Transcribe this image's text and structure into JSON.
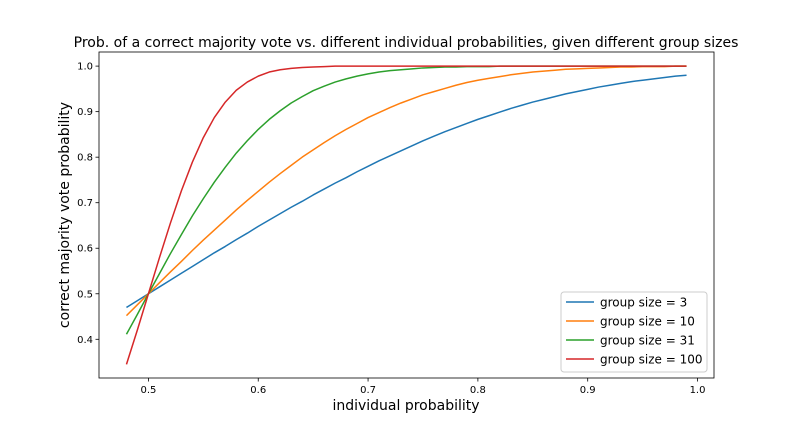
{
  "chart_data": {
    "type": "line",
    "title": "Prob. of a correct majority vote vs. different individual probabilities, given different group sizes",
    "xlabel": "individual probability",
    "ylabel": "correct majority vote probability",
    "xlim": [
      0.455,
      1.015
    ],
    "ylim": [
      0.315,
      1.031
    ],
    "xticks": [
      0.5,
      0.6,
      0.7,
      0.8,
      0.9,
      1.0
    ],
    "xtick_labels": [
      "0.5",
      "0.6",
      "0.7",
      "0.8",
      "0.9",
      "1.0"
    ],
    "yticks": [
      0.4,
      0.5,
      0.6,
      0.7,
      0.8,
      0.9,
      1.0
    ],
    "ytick_labels": [
      "0.4",
      "0.5",
      "0.6",
      "0.7",
      "0.8",
      "0.9",
      "1.0"
    ],
    "grid": false,
    "legend_position": "lower-right",
    "x": [
      0.48,
      0.49,
      0.5,
      0.51,
      0.52,
      0.53,
      0.54,
      0.55,
      0.56,
      0.57,
      0.58,
      0.59,
      0.6,
      0.61,
      0.62,
      0.63,
      0.64,
      0.65,
      0.66,
      0.67,
      0.68,
      0.69,
      0.7,
      0.71,
      0.72,
      0.73,
      0.74,
      0.75,
      0.76,
      0.77,
      0.78,
      0.79,
      0.8,
      0.81,
      0.82,
      0.83,
      0.84,
      0.85,
      0.86,
      0.87,
      0.88,
      0.89,
      0.9,
      0.91,
      0.92,
      0.93,
      0.94,
      0.95,
      0.96,
      0.97,
      0.98,
      0.99
    ],
    "series": [
      {
        "name": "group size = 3",
        "color": "#1f77b4",
        "values": [
          0.47,
          0.485,
          0.5,
          0.515,
          0.53,
          0.545,
          0.56,
          0.575,
          0.59,
          0.604,
          0.619,
          0.633,
          0.648,
          0.662,
          0.676,
          0.69,
          0.703,
          0.717,
          0.73,
          0.743,
          0.755,
          0.768,
          0.78,
          0.792,
          0.803,
          0.814,
          0.825,
          0.836,
          0.846,
          0.856,
          0.865,
          0.874,
          0.883,
          0.891,
          0.899,
          0.907,
          0.914,
          0.921,
          0.927,
          0.933,
          0.939,
          0.944,
          0.949,
          0.954,
          0.958,
          0.962,
          0.966,
          0.969,
          0.972,
          0.975,
          0.978,
          0.98
        ]
      },
      {
        "name": "group size = 10",
        "color": "#ff7f0e",
        "values": [
          0.452,
          0.476,
          0.5,
          0.524,
          0.548,
          0.571,
          0.595,
          0.618,
          0.64,
          0.662,
          0.684,
          0.705,
          0.725,
          0.745,
          0.764,
          0.782,
          0.8,
          0.816,
          0.832,
          0.847,
          0.861,
          0.874,
          0.887,
          0.898,
          0.909,
          0.919,
          0.928,
          0.937,
          0.944,
          0.951,
          0.958,
          0.964,
          0.969,
          0.973,
          0.977,
          0.981,
          0.984,
          0.987,
          0.989,
          0.991,
          0.993,
          0.994,
          0.995,
          0.996,
          0.997,
          0.998,
          0.998,
          0.999,
          0.999,
          0.999,
          1.0,
          1.0
        ]
      },
      {
        "name": "group size = 31",
        "color": "#2ca02c",
        "values": [
          0.411,
          0.455,
          0.5,
          0.544,
          0.588,
          0.63,
          0.671,
          0.709,
          0.745,
          0.778,
          0.809,
          0.836,
          0.861,
          0.883,
          0.902,
          0.919,
          0.933,
          0.946,
          0.956,
          0.965,
          0.972,
          0.978,
          0.983,
          0.987,
          0.99,
          0.992,
          0.994,
          0.996,
          0.997,
          0.998,
          0.998,
          0.999,
          0.999,
          0.999,
          1.0,
          1.0,
          1.0,
          1.0,
          1.0,
          1.0,
          1.0,
          1.0,
          1.0,
          1.0,
          1.0,
          1.0,
          1.0,
          1.0,
          1.0,
          1.0,
          1.0,
          1.0
        ]
      },
      {
        "name": "group size = 100",
        "color": "#d62728",
        "values": [
          0.345,
          0.421,
          0.5,
          0.579,
          0.655,
          0.726,
          0.789,
          0.843,
          0.887,
          0.921,
          0.947,
          0.965,
          0.978,
          0.987,
          0.992,
          0.995,
          0.997,
          0.998,
          0.999,
          1.0,
          1.0,
          1.0,
          1.0,
          1.0,
          1.0,
          1.0,
          1.0,
          1.0,
          1.0,
          1.0,
          1.0,
          1.0,
          1.0,
          1.0,
          1.0,
          1.0,
          1.0,
          1.0,
          1.0,
          1.0,
          1.0,
          1.0,
          1.0,
          1.0,
          1.0,
          1.0,
          1.0,
          1.0,
          1.0,
          1.0,
          1.0,
          1.0
        ]
      }
    ]
  }
}
